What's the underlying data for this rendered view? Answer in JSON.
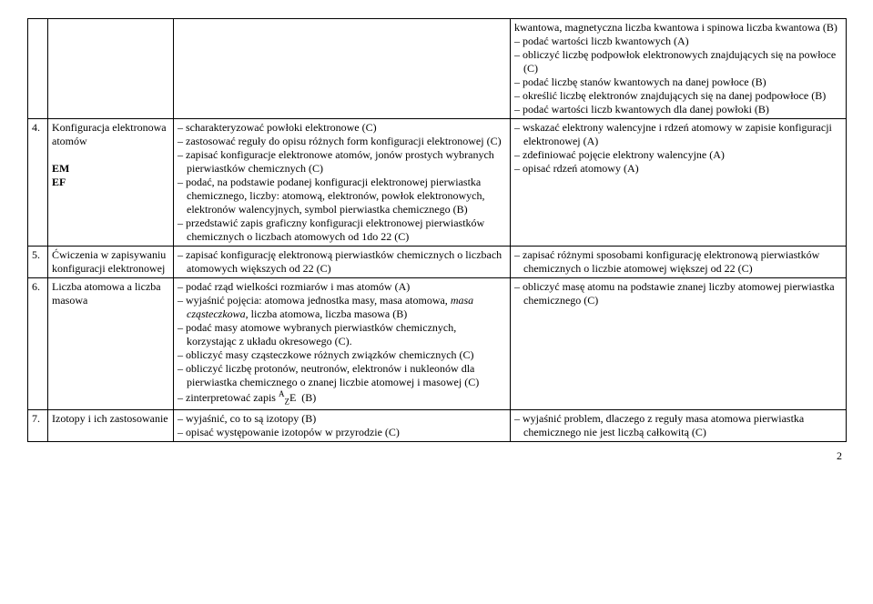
{
  "rows": [
    {
      "num": "",
      "topic_lines": [],
      "col3_items": [],
      "col4_items": [
        "kwantowa, magnetyczna liczba kwantowa i spinowa liczba kwantowa (B)",
        "podać wartości liczb kwantowych (A)",
        "obliczyć liczbę podpowłok elektronowych znajdujących się na powłoce (C)",
        "podać liczbę stanów kwantowych na danej powłoce (B)",
        "określić liczbę elektronów znajdujących się na danej podpowłoce (B)",
        "podać wartości liczb kwantowych dla danej powłoki (B)"
      ],
      "col4_first_plain": true
    },
    {
      "num": "4.",
      "topic_lines": [
        "Konfiguracja elektronowa atomów",
        "",
        "EM",
        "EF"
      ],
      "topic_bold_from": 2,
      "col3_items": [
        "scharakteryzować powłoki elektronowe (C)",
        "zastosować reguły do opisu różnych form konfiguracji elektronowej (C)",
        "zapisać konfiguracje elektronowe atomów, jonów prostych wybranych pierwiastków chemicznych (C)",
        "podać, na podstawie podanej konfiguracji elektronowej pierwiastka chemicznego, liczby: atomową, elektronów, powłok elektronowych, elektronów walencyjnych, symbol pierwiastka chemicznego (B)",
        "przedstawić zapis graficzny konfiguracji elektronowej pierwiastków chemicznych o liczbach atomowych od 1do 22 (C)"
      ],
      "col4_items": [
        "wskazać elektrony walencyjne i rdzeń atomowy w zapisie konfiguracji elektronowej (A)",
        "zdefiniować pojęcie elektrony walencyjne (A)",
        "opisać rdzeń atomowy (A)"
      ]
    },
    {
      "num": "5.",
      "topic_lines": [
        "Ćwiczenia w zapisywaniu konfiguracji elektronowej"
      ],
      "col3_items": [
        "zapisać konfigurację elektronową pierwiastków chemicznych o liczbach atomowych większych od 22 (C)"
      ],
      "col4_items": [
        "zapisać różnymi sposobami konfigurację elektronową pierwiastków chemicznych o liczbie atomowej większej od 22 (C)"
      ]
    },
    {
      "num": "6.",
      "topic_lines": [
        "Liczba atomowa a liczba masowa"
      ],
      "col3_items": [
        "podać rząd wielkości rozmiarów i mas atomów (A)",
        "wyjaśnić pojęcia: atomowa jednostka masy, masa atomowa, <span class=\"italic\">masa cząsteczkowa</span>, liczba atomowa, liczba masowa (B)",
        "podać masy atomowe wybranych pierwiastków chemicznych, korzystając z układu okresowego (C).",
        "obliczyć masy cząsteczkowe różnych związków chemicznych (C)",
        "obliczyć liczbę protonów, neutronów, elektronów i nukleonów dla pierwiastka chemicznego o znanej liczbie atomowej i masowej (C)",
        "zinterpretować zapis <span class=\"sup\">A</span><span class=\"sub\">Z</span>E&nbsp;&nbsp;(B)"
      ],
      "col4_items": [
        "obliczyć masę atomu na podstawie znanej liczby atomowej pierwiastka chemicznego (C)"
      ]
    },
    {
      "num": "7.",
      "topic_lines": [
        "Izotopy i ich zastosowanie"
      ],
      "col3_items": [
        "wyjaśnić, co to są izotopy (B)",
        "opisać występowanie izotopów w przyrodzie (C)"
      ],
      "col4_items": [
        "wyjaśnić problem, dlaczego z reguły masa atomowa pierwiastka chemicznego nie jest liczbą całkowitą (C)"
      ]
    }
  ],
  "page_number": "2"
}
